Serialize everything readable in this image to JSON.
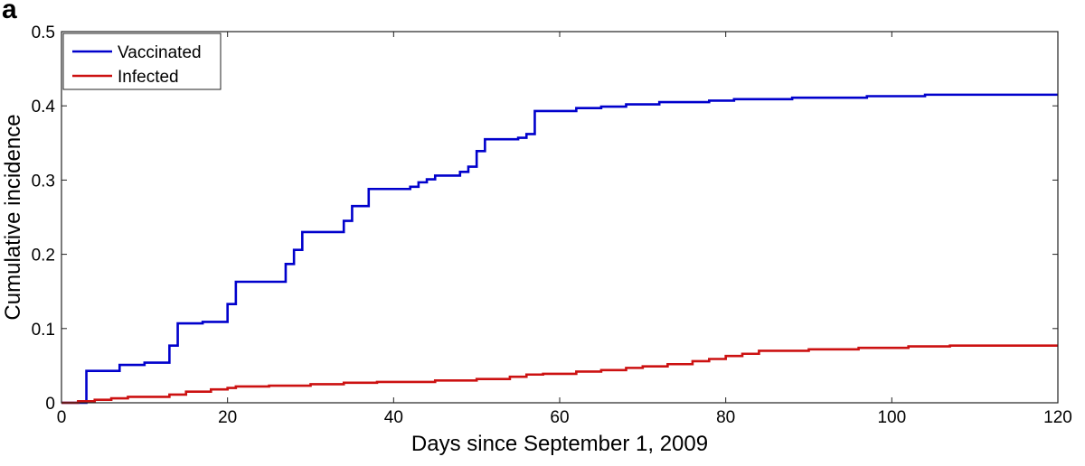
{
  "panel_label": "a",
  "chart_data": {
    "type": "line",
    "title": "",
    "xlabel": "Days since September 1, 2009",
    "ylabel": "Cumulative incidence",
    "xlim": [
      0,
      120
    ],
    "ylim": [
      0,
      0.5
    ],
    "xticks": [
      0,
      20,
      40,
      60,
      80,
      100,
      120
    ],
    "yticks": [
      0,
      0.1,
      0.2,
      0.3,
      0.4,
      0.5
    ],
    "xtick_labels": [
      "0",
      "20",
      "40",
      "60",
      "80",
      "100",
      "120"
    ],
    "ytick_labels": [
      "0",
      "0.1",
      "0.2",
      "0.3",
      "0.4",
      "0.5"
    ],
    "grid": false,
    "legend_position": "top-left",
    "step": true,
    "series": [
      {
        "name": "Vaccinated",
        "color": "#0000cc",
        "points": [
          [
            0,
            0
          ],
          [
            3,
            0
          ],
          [
            3,
            0.043
          ],
          [
            7,
            0.043
          ],
          [
            7,
            0.051
          ],
          [
            10,
            0.051
          ],
          [
            10,
            0.054
          ],
          [
            13,
            0.054
          ],
          [
            13,
            0.077
          ],
          [
            14,
            0.077
          ],
          [
            14,
            0.107
          ],
          [
            17,
            0.107
          ],
          [
            17,
            0.109
          ],
          [
            20,
            0.109
          ],
          [
            20,
            0.133
          ],
          [
            21,
            0.133
          ],
          [
            21,
            0.163
          ],
          [
            27,
            0.163
          ],
          [
            27,
            0.187
          ],
          [
            28,
            0.187
          ],
          [
            28,
            0.206
          ],
          [
            29,
            0.206
          ],
          [
            29,
            0.23
          ],
          [
            34,
            0.23
          ],
          [
            34,
            0.245
          ],
          [
            35,
            0.245
          ],
          [
            35,
            0.265
          ],
          [
            37,
            0.265
          ],
          [
            37,
            0.288
          ],
          [
            42,
            0.288
          ],
          [
            42,
            0.291
          ],
          [
            43,
            0.291
          ],
          [
            43,
            0.297
          ],
          [
            44,
            0.297
          ],
          [
            44,
            0.301
          ],
          [
            45,
            0.301
          ],
          [
            45,
            0.306
          ],
          [
            48,
            0.306
          ],
          [
            48,
            0.311
          ],
          [
            49,
            0.311
          ],
          [
            49,
            0.318
          ],
          [
            50,
            0.318
          ],
          [
            50,
            0.339
          ],
          [
            51,
            0.339
          ],
          [
            51,
            0.355
          ],
          [
            55,
            0.355
          ],
          [
            55,
            0.357
          ],
          [
            56,
            0.357
          ],
          [
            56,
            0.362
          ],
          [
            57,
            0.362
          ],
          [
            57,
            0.393
          ],
          [
            62,
            0.393
          ],
          [
            62,
            0.397
          ],
          [
            65,
            0.397
          ],
          [
            65,
            0.399
          ],
          [
            68,
            0.399
          ],
          [
            68,
            0.402
          ],
          [
            72,
            0.402
          ],
          [
            72,
            0.405
          ],
          [
            78,
            0.405
          ],
          [
            78,
            0.407
          ],
          [
            81,
            0.407
          ],
          [
            81,
            0.409
          ],
          [
            88,
            0.409
          ],
          [
            88,
            0.411
          ],
          [
            97,
            0.411
          ],
          [
            97,
            0.413
          ],
          [
            104,
            0.413
          ],
          [
            104,
            0.415
          ],
          [
            120,
            0.415
          ]
        ]
      },
      {
        "name": "Infected",
        "color": "#cc1111",
        "points": [
          [
            0,
            0
          ],
          [
            2,
            0
          ],
          [
            2,
            0.002
          ],
          [
            4,
            0.002
          ],
          [
            4,
            0.004
          ],
          [
            6,
            0.004
          ],
          [
            6,
            0.006
          ],
          [
            8,
            0.006
          ],
          [
            8,
            0.008
          ],
          [
            13,
            0.008
          ],
          [
            13,
            0.011
          ],
          [
            15,
            0.011
          ],
          [
            15,
            0.015
          ],
          [
            18,
            0.015
          ],
          [
            18,
            0.018
          ],
          [
            20,
            0.018
          ],
          [
            20,
            0.02
          ],
          [
            21,
            0.02
          ],
          [
            21,
            0.022
          ],
          [
            25,
            0.022
          ],
          [
            25,
            0.023
          ],
          [
            30,
            0.023
          ],
          [
            30,
            0.025
          ],
          [
            34,
            0.025
          ],
          [
            34,
            0.027
          ],
          [
            38,
            0.027
          ],
          [
            38,
            0.028
          ],
          [
            45,
            0.028
          ],
          [
            45,
            0.03
          ],
          [
            50,
            0.03
          ],
          [
            50,
            0.032
          ],
          [
            54,
            0.032
          ],
          [
            54,
            0.035
          ],
          [
            56,
            0.035
          ],
          [
            56,
            0.038
          ],
          [
            58,
            0.038
          ],
          [
            58,
            0.039
          ],
          [
            62,
            0.039
          ],
          [
            62,
            0.042
          ],
          [
            65,
            0.042
          ],
          [
            65,
            0.044
          ],
          [
            68,
            0.044
          ],
          [
            68,
            0.047
          ],
          [
            70,
            0.047
          ],
          [
            70,
            0.049
          ],
          [
            73,
            0.049
          ],
          [
            73,
            0.052
          ],
          [
            76,
            0.052
          ],
          [
            76,
            0.056
          ],
          [
            78,
            0.056
          ],
          [
            78,
            0.059
          ],
          [
            80,
            0.059
          ],
          [
            80,
            0.063
          ],
          [
            82,
            0.063
          ],
          [
            82,
            0.066
          ],
          [
            84,
            0.066
          ],
          [
            84,
            0.07
          ],
          [
            90,
            0.07
          ],
          [
            90,
            0.072
          ],
          [
            96,
            0.072
          ],
          [
            96,
            0.074
          ],
          [
            102,
            0.074
          ],
          [
            102,
            0.076
          ],
          [
            107,
            0.076
          ],
          [
            107,
            0.077
          ],
          [
            120,
            0.077
          ]
        ]
      }
    ]
  }
}
